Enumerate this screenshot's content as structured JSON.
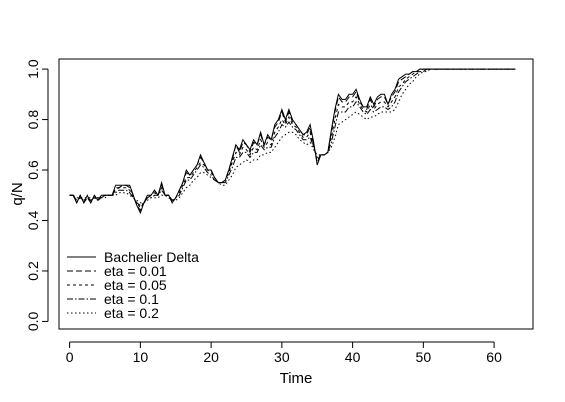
{
  "chart_data": {
    "type": "line",
    "title": "",
    "xlabel": "Time",
    "ylabel": "q/N",
    "xlim": [
      -1.5,
      65.5
    ],
    "ylim": [
      -0.03,
      1.04
    ],
    "xticks": [
      0,
      10,
      20,
      30,
      40,
      50,
      60
    ],
    "xtick_labels": [
      "0",
      "10",
      "20",
      "30",
      "40",
      "50",
      "60"
    ],
    "yticks": [
      0.0,
      0.2,
      0.4,
      0.6,
      0.8,
      1.0
    ],
    "ytick_labels": [
      "0.0",
      "0.2",
      "0.4",
      "0.6",
      "0.8",
      "1.0"
    ],
    "legend_position": "bottom-left",
    "grid": false,
    "line_color": "#000000",
    "x": [
      0,
      0.5,
      1,
      1.5,
      2,
      2.5,
      3,
      3.5,
      4,
      4.5,
      5,
      5.5,
      6,
      6.5,
      7,
      7.5,
      8,
      8.5,
      9,
      9.5,
      10,
      10.5,
      11,
      11.5,
      12,
      12.5,
      13,
      13.5,
      14,
      14.5,
      15,
      15.5,
      16,
      16.5,
      17,
      17.5,
      18,
      18.5,
      19,
      19.5,
      20,
      20.5,
      21,
      21.5,
      22,
      22.5,
      23,
      23.5,
      24,
      24.5,
      25,
      25.5,
      26,
      26.5,
      27,
      27.5,
      28,
      28.5,
      29,
      29.5,
      30,
      30.5,
      31,
      31.5,
      32,
      32.5,
      33,
      33.5,
      34,
      34.5,
      35,
      35.5,
      36,
      36.5,
      37,
      37.5,
      38,
      38.5,
      39,
      39.5,
      40,
      40.5,
      41,
      41.5,
      42,
      42.5,
      43,
      43.5,
      44,
      44.5,
      45,
      45.5,
      46,
      46.5,
      47,
      47.5,
      48,
      48.5,
      49,
      49.5,
      50,
      50.5,
      51,
      51.5,
      52,
      52.5,
      53,
      53.5,
      54,
      54.5,
      55,
      55.5,
      56,
      56.5,
      57,
      57.5,
      58,
      58.5,
      59,
      59.5,
      60,
      60.5,
      61,
      61.5,
      62,
      62.5,
      63
    ],
    "series": [
      {
        "name": "Bachelier Delta",
        "style": "solid",
        "y": [
          0.5,
          0.5,
          0.47,
          0.5,
          0.47,
          0.5,
          0.47,
          0.5,
          0.48,
          0.5,
          0.5,
          0.5,
          0.5,
          0.54,
          0.54,
          0.54,
          0.54,
          0.54,
          0.5,
          0.46,
          0.43,
          0.47,
          0.5,
          0.5,
          0.52,
          0.5,
          0.55,
          0.5,
          0.5,
          0.47,
          0.49,
          0.52,
          0.55,
          0.6,
          0.58,
          0.6,
          0.62,
          0.66,
          0.63,
          0.6,
          0.6,
          0.57,
          0.55,
          0.55,
          0.56,
          0.6,
          0.65,
          0.7,
          0.68,
          0.72,
          0.7,
          0.68,
          0.72,
          0.7,
          0.75,
          0.7,
          0.74,
          0.72,
          0.78,
          0.8,
          0.84,
          0.8,
          0.84,
          0.8,
          0.78,
          0.76,
          0.74,
          0.75,
          0.78,
          0.71,
          0.62,
          0.66,
          0.66,
          0.67,
          0.76,
          0.84,
          0.9,
          0.88,
          0.88,
          0.9,
          0.9,
          0.92,
          0.88,
          0.85,
          0.85,
          0.89,
          0.86,
          0.89,
          0.9,
          0.9,
          0.86,
          0.9,
          0.92,
          0.96,
          0.97,
          0.98,
          0.98,
          0.99,
          0.99,
          1.0,
          1.0,
          1.0,
          1.0,
          1.0,
          1.0,
          1.0,
          1.0,
          1.0,
          1.0,
          1.0,
          1.0,
          1.0,
          1.0,
          1.0,
          1.0,
          1.0,
          1.0,
          1.0,
          1.0,
          1.0,
          1.0,
          1.0,
          1.0,
          1.0,
          1.0,
          1.0,
          1.0
        ]
      },
      {
        "name": "eta = 0.01",
        "style": "dashed",
        "y": [
          0.5,
          0.5,
          0.47,
          0.5,
          0.47,
          0.49,
          0.47,
          0.5,
          0.48,
          0.5,
          0.5,
          0.5,
          0.5,
          0.53,
          0.53,
          0.54,
          0.54,
          0.53,
          0.5,
          0.46,
          0.44,
          0.47,
          0.49,
          0.5,
          0.52,
          0.5,
          0.54,
          0.5,
          0.5,
          0.47,
          0.49,
          0.52,
          0.55,
          0.59,
          0.58,
          0.6,
          0.62,
          0.65,
          0.63,
          0.6,
          0.6,
          0.57,
          0.55,
          0.55,
          0.56,
          0.6,
          0.64,
          0.7,
          0.67,
          0.71,
          0.7,
          0.67,
          0.71,
          0.7,
          0.74,
          0.7,
          0.73,
          0.72,
          0.77,
          0.79,
          0.83,
          0.79,
          0.83,
          0.79,
          0.78,
          0.76,
          0.74,
          0.74,
          0.77,
          0.7,
          0.63,
          0.66,
          0.66,
          0.67,
          0.75,
          0.83,
          0.89,
          0.87,
          0.87,
          0.89,
          0.89,
          0.91,
          0.87,
          0.85,
          0.84,
          0.88,
          0.85,
          0.88,
          0.89,
          0.89,
          0.86,
          0.89,
          0.91,
          0.95,
          0.96,
          0.97,
          0.98,
          0.99,
          0.99,
          1.0,
          1.0,
          1.0,
          1.0,
          1.0,
          1.0,
          1.0,
          1.0,
          1.0,
          1.0,
          1.0,
          1.0,
          1.0,
          1.0,
          1.0,
          1.0,
          1.0,
          1.0,
          1.0,
          1.0,
          1.0,
          1.0,
          1.0,
          1.0,
          1.0,
          1.0,
          1.0,
          1.0
        ]
      },
      {
        "name": "eta = 0.05",
        "style": "dashed",
        "y": [
          0.5,
          0.5,
          0.48,
          0.49,
          0.48,
          0.49,
          0.48,
          0.49,
          0.48,
          0.49,
          0.5,
          0.5,
          0.5,
          0.52,
          0.53,
          0.53,
          0.53,
          0.52,
          0.49,
          0.47,
          0.45,
          0.47,
          0.49,
          0.5,
          0.51,
          0.5,
          0.53,
          0.5,
          0.5,
          0.48,
          0.49,
          0.51,
          0.54,
          0.57,
          0.57,
          0.59,
          0.61,
          0.63,
          0.62,
          0.6,
          0.59,
          0.57,
          0.55,
          0.55,
          0.56,
          0.59,
          0.63,
          0.67,
          0.66,
          0.69,
          0.68,
          0.66,
          0.69,
          0.68,
          0.72,
          0.69,
          0.71,
          0.7,
          0.75,
          0.77,
          0.8,
          0.78,
          0.81,
          0.78,
          0.77,
          0.75,
          0.73,
          0.73,
          0.75,
          0.69,
          0.64,
          0.66,
          0.66,
          0.67,
          0.73,
          0.8,
          0.86,
          0.85,
          0.85,
          0.87,
          0.87,
          0.89,
          0.86,
          0.84,
          0.83,
          0.86,
          0.84,
          0.86,
          0.87,
          0.87,
          0.85,
          0.87,
          0.89,
          0.93,
          0.94,
          0.96,
          0.97,
          0.98,
          0.99,
          0.99,
          1.0,
          1.0,
          1.0,
          1.0,
          1.0,
          1.0,
          1.0,
          1.0,
          1.0,
          1.0,
          1.0,
          1.0,
          1.0,
          1.0,
          1.0,
          1.0,
          1.0,
          1.0,
          1.0,
          1.0,
          1.0,
          1.0,
          1.0,
          1.0,
          1.0,
          1.0,
          1.0
        ]
      },
      {
        "name": "eta = 0.1",
        "style": "dashdot",
        "y": [
          0.5,
          0.5,
          0.48,
          0.49,
          0.48,
          0.49,
          0.48,
          0.49,
          0.49,
          0.49,
          0.5,
          0.5,
          0.5,
          0.51,
          0.52,
          0.52,
          0.52,
          0.51,
          0.49,
          0.47,
          0.46,
          0.47,
          0.49,
          0.49,
          0.5,
          0.5,
          0.52,
          0.5,
          0.5,
          0.48,
          0.49,
          0.5,
          0.53,
          0.56,
          0.56,
          0.58,
          0.6,
          0.62,
          0.61,
          0.59,
          0.58,
          0.56,
          0.55,
          0.55,
          0.55,
          0.58,
          0.61,
          0.65,
          0.65,
          0.67,
          0.67,
          0.65,
          0.67,
          0.67,
          0.7,
          0.68,
          0.69,
          0.69,
          0.73,
          0.75,
          0.78,
          0.77,
          0.79,
          0.77,
          0.76,
          0.74,
          0.72,
          0.72,
          0.73,
          0.69,
          0.65,
          0.66,
          0.66,
          0.67,
          0.71,
          0.77,
          0.83,
          0.83,
          0.83,
          0.85,
          0.85,
          0.87,
          0.85,
          0.83,
          0.82,
          0.84,
          0.83,
          0.84,
          0.85,
          0.85,
          0.84,
          0.85,
          0.87,
          0.91,
          0.93,
          0.95,
          0.96,
          0.97,
          0.98,
          0.99,
          0.99,
          1.0,
          1.0,
          1.0,
          1.0,
          1.0,
          1.0,
          1.0,
          1.0,
          1.0,
          1.0,
          1.0,
          1.0,
          1.0,
          1.0,
          1.0,
          1.0,
          1.0,
          1.0,
          1.0,
          1.0,
          1.0,
          1.0,
          1.0,
          1.0,
          1.0,
          1.0
        ]
      },
      {
        "name": "eta = 0.2",
        "style": "dotted",
        "y": [
          0.5,
          0.5,
          0.49,
          0.49,
          0.49,
          0.49,
          0.49,
          0.49,
          0.49,
          0.49,
          0.49,
          0.5,
          0.5,
          0.5,
          0.51,
          0.51,
          0.51,
          0.5,
          0.49,
          0.48,
          0.47,
          0.47,
          0.48,
          0.49,
          0.49,
          0.49,
          0.5,
          0.5,
          0.49,
          0.48,
          0.48,
          0.49,
          0.51,
          0.53,
          0.54,
          0.56,
          0.57,
          0.59,
          0.59,
          0.58,
          0.57,
          0.56,
          0.55,
          0.54,
          0.54,
          0.56,
          0.58,
          0.61,
          0.62,
          0.63,
          0.64,
          0.63,
          0.64,
          0.64,
          0.66,
          0.66,
          0.67,
          0.67,
          0.69,
          0.71,
          0.73,
          0.74,
          0.75,
          0.75,
          0.74,
          0.72,
          0.71,
          0.7,
          0.71,
          0.68,
          0.66,
          0.66,
          0.66,
          0.67,
          0.69,
          0.73,
          0.78,
          0.79,
          0.8,
          0.81,
          0.82,
          0.83,
          0.82,
          0.81,
          0.8,
          0.81,
          0.81,
          0.82,
          0.83,
          0.83,
          0.83,
          0.83,
          0.84,
          0.87,
          0.9,
          0.92,
          0.94,
          0.95,
          0.97,
          0.98,
          0.99,
          0.99,
          1.0,
          1.0,
          1.0,
          1.0,
          1.0,
          1.0,
          1.0,
          1.0,
          1.0,
          1.0,
          1.0,
          1.0,
          1.0,
          1.0,
          1.0,
          1.0,
          1.0,
          1.0,
          1.0,
          1.0,
          1.0,
          1.0,
          1.0,
          1.0,
          1.0
        ]
      }
    ]
  }
}
